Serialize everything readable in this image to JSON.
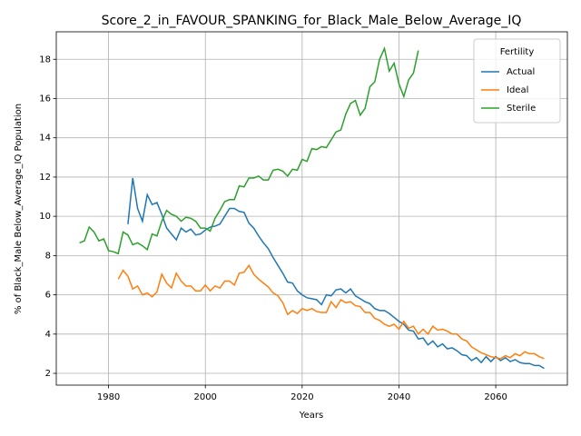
{
  "chart_data": {
    "type": "line",
    "title": "Score_2_in_FAVOUR_SPANKING_for_Black_Male_Below_Average_IQ",
    "x_label": "Years",
    "y_label": "% of Black_Male Below_Average_IQ Population",
    "x": [
      1974,
      1975,
      1976,
      1977,
      1978,
      1979,
      1980,
      1981,
      1982,
      1983,
      1984,
      1985,
      1986,
      1987,
      1988,
      1989,
      1990,
      1991,
      1992,
      1993,
      1994,
      1995,
      1996,
      1997,
      1998,
      1999,
      2000,
      2001,
      2002,
      2003,
      2004,
      2005,
      2006,
      2007,
      2008,
      2009,
      2010,
      2011,
      2012,
      2013,
      2014,
      2015,
      2016,
      2017,
      2018,
      2019,
      2020,
      2021,
      2022,
      2023,
      2024,
      2025,
      2026,
      2027,
      2028,
      2029,
      2030,
      2031,
      2032,
      2033,
      2034,
      2035,
      2036,
      2037,
      2038,
      2039,
      2040,
      2041,
      2042,
      2043,
      2044,
      2045,
      2046,
      2047,
      2048,
      2049,
      2050,
      2051,
      2052,
      2053,
      2054,
      2055,
      2056,
      2057,
      2058,
      2059,
      2060,
      2061,
      2062,
      2063,
      2064,
      2065,
      2066,
      2067,
      2068,
      2069,
      2070
    ],
    "series": [
      {
        "name": "Actual",
        "color": "#1f77b4",
        "values": [
          null,
          null,
          null,
          null,
          null,
          null,
          null,
          null,
          null,
          null,
          9.6,
          11.95,
          10.4,
          9.75,
          11.1,
          10.6,
          10.7,
          10.1,
          9.4,
          9.1,
          8.8,
          9.4,
          9.2,
          9.35,
          9.05,
          9.1,
          9.3,
          9.45,
          9.5,
          9.6,
          10.0,
          10.4,
          10.4,
          10.25,
          10.2,
          9.65,
          9.4,
          9.0,
          8.65,
          8.35,
          7.9,
          7.5,
          7.1,
          6.65,
          6.6,
          6.2,
          6.0,
          5.85,
          5.8,
          5.75,
          5.5,
          6.0,
          5.95,
          6.25,
          6.3,
          6.1,
          6.3,
          5.95,
          5.8,
          5.65,
          5.55,
          5.3,
          5.2,
          5.2,
          5.05,
          4.85,
          4.65,
          4.5,
          4.2,
          4.15,
          3.75,
          3.8,
          3.45,
          3.65,
          3.35,
          3.5,
          3.25,
          3.3,
          3.15,
          2.95,
          2.9,
          2.65,
          2.8,
          2.55,
          2.85,
          2.6,
          2.85,
          2.65,
          2.8,
          2.6,
          2.7,
          2.55,
          2.5,
          2.5,
          2.4,
          2.4,
          2.25
        ]
      },
      {
        "name": "Ideal",
        "color": "#ff7f0e",
        "values": [
          null,
          null,
          null,
          null,
          null,
          null,
          null,
          null,
          6.8,
          7.25,
          6.95,
          6.3,
          6.45,
          6.0,
          6.1,
          5.9,
          6.15,
          7.05,
          6.6,
          6.35,
          7.1,
          6.7,
          6.45,
          6.45,
          6.2,
          6.2,
          6.5,
          6.2,
          6.45,
          6.35,
          6.7,
          6.7,
          6.5,
          7.1,
          7.15,
          7.5,
          7.05,
          6.8,
          6.6,
          6.4,
          6.1,
          5.95,
          5.6,
          5.0,
          5.2,
          5.05,
          5.3,
          5.2,
          5.3,
          5.15,
          5.1,
          5.1,
          5.65,
          5.35,
          5.75,
          5.6,
          5.65,
          5.45,
          5.4,
          5.1,
          5.1,
          4.8,
          4.7,
          4.5,
          4.4,
          4.5,
          4.25,
          4.65,
          4.3,
          4.4,
          4.0,
          4.25,
          4.0,
          4.4,
          4.2,
          4.25,
          4.15,
          4.0,
          4.0,
          3.75,
          3.65,
          3.35,
          3.2,
          3.05,
          2.95,
          2.85,
          2.8,
          2.75,
          2.9,
          2.8,
          3.0,
          2.9,
          3.1,
          3.0,
          3.0,
          2.85,
          2.75
        ]
      },
      {
        "name": "Sterile",
        "color": "#2ca02c",
        "values": [
          8.65,
          8.75,
          9.45,
          9.2,
          8.75,
          8.85,
          8.25,
          8.2,
          8.1,
          9.2,
          9.05,
          8.55,
          8.65,
          8.5,
          8.3,
          9.1,
          9.0,
          9.75,
          10.3,
          10.1,
          10.0,
          9.75,
          9.95,
          9.9,
          9.75,
          9.4,
          9.4,
          9.25,
          9.9,
          10.3,
          10.75,
          10.85,
          10.85,
          11.55,
          11.5,
          11.95,
          11.95,
          12.05,
          11.85,
          11.85,
          12.35,
          12.4,
          12.3,
          12.05,
          12.4,
          12.35,
          12.9,
          12.8,
          13.45,
          13.4,
          13.55,
          13.5,
          13.9,
          14.3,
          14.4,
          15.2,
          15.75,
          15.9,
          15.15,
          15.5,
          16.6,
          16.85,
          18.0,
          18.55,
          17.4,
          17.8,
          16.75,
          16.1,
          16.95,
          17.3,
          18.45,
          null,
          null,
          null,
          null,
          null,
          null,
          null,
          null,
          null,
          null,
          null,
          null,
          null,
          null,
          null,
          null,
          null,
          null,
          null,
          null,
          null,
          null,
          null,
          null,
          null,
          null
        ]
      }
    ],
    "xlim": [
      1969.2,
      2074.8
    ],
    "xticks": [
      1980,
      2000,
      2020,
      2040,
      2060
    ],
    "ylim": [
      1.4,
      19.4
    ],
    "yticks": [
      2,
      4,
      6,
      8,
      10,
      12,
      14,
      16,
      18
    ],
    "grid": true,
    "legend_title": "Fertility",
    "legend_position": "upper right"
  }
}
